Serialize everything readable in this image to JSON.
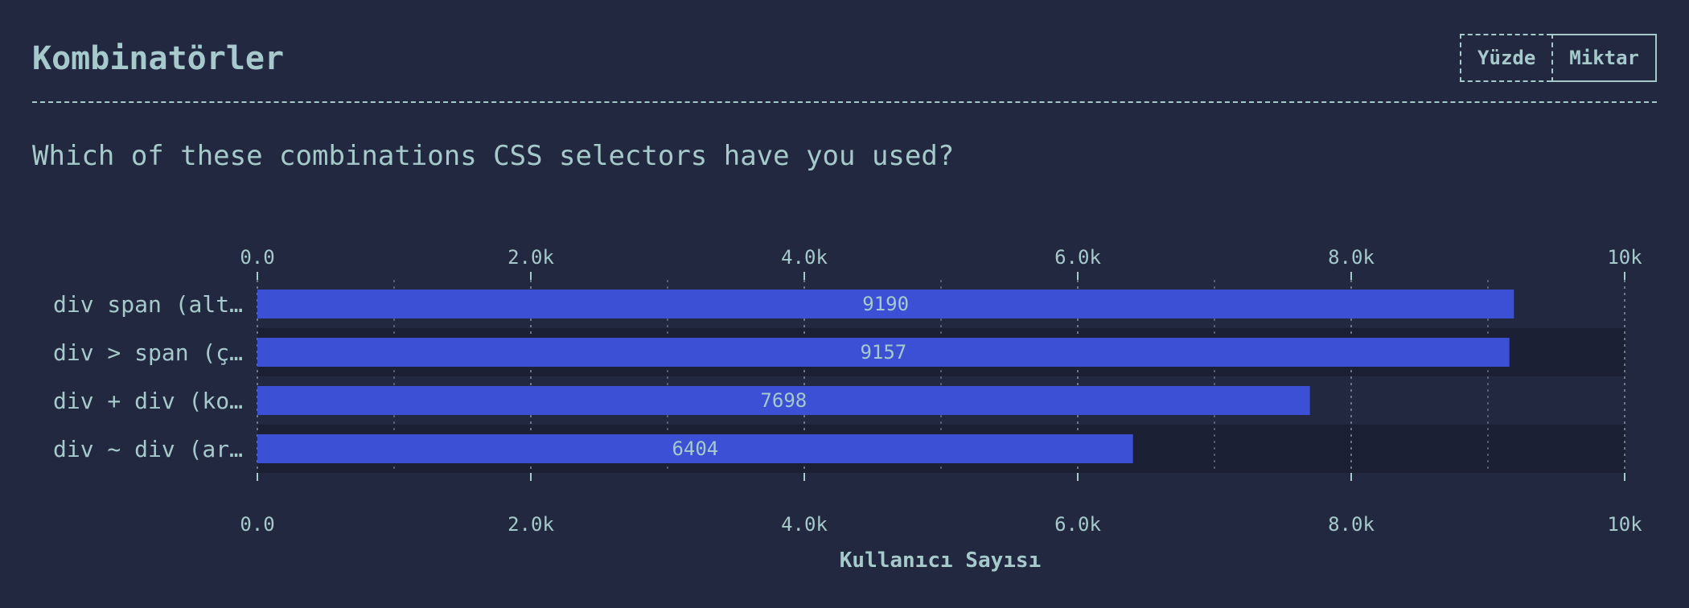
{
  "header": {
    "title": "Kombinatörler",
    "toggle": [
      "Yüzde",
      "Miktar"
    ],
    "active_toggle": "Miktar"
  },
  "question": "Which of these combinations CSS selectors have you used?",
  "colors": {
    "background": "#232841",
    "text": "#a6cacc",
    "bar": "#3b50d4",
    "row_alt": "#1c2034",
    "grid": "#7f93a0"
  },
  "chart_data": {
    "type": "bar",
    "orientation": "horizontal",
    "categories": [
      "div span (alt…",
      "div > span (ç…",
      "div + div (ko…",
      "div ~ div (ar…"
    ],
    "values": [
      9190,
      9157,
      7698,
      6404
    ],
    "xlabel": "Kullanıcı Sayısı",
    "xlim": [
      0,
      10000
    ],
    "ticks": [
      0,
      2000,
      4000,
      6000,
      8000,
      10000
    ],
    "tick_labels": [
      "0.0",
      "2.0k",
      "4.0k",
      "6.0k",
      "8.0k",
      "10k"
    ],
    "minor_ticks": [
      1000,
      3000,
      5000,
      7000,
      9000
    ],
    "grid": true,
    "axis_ticks_position": "top and bottom",
    "data_labels": true
  }
}
